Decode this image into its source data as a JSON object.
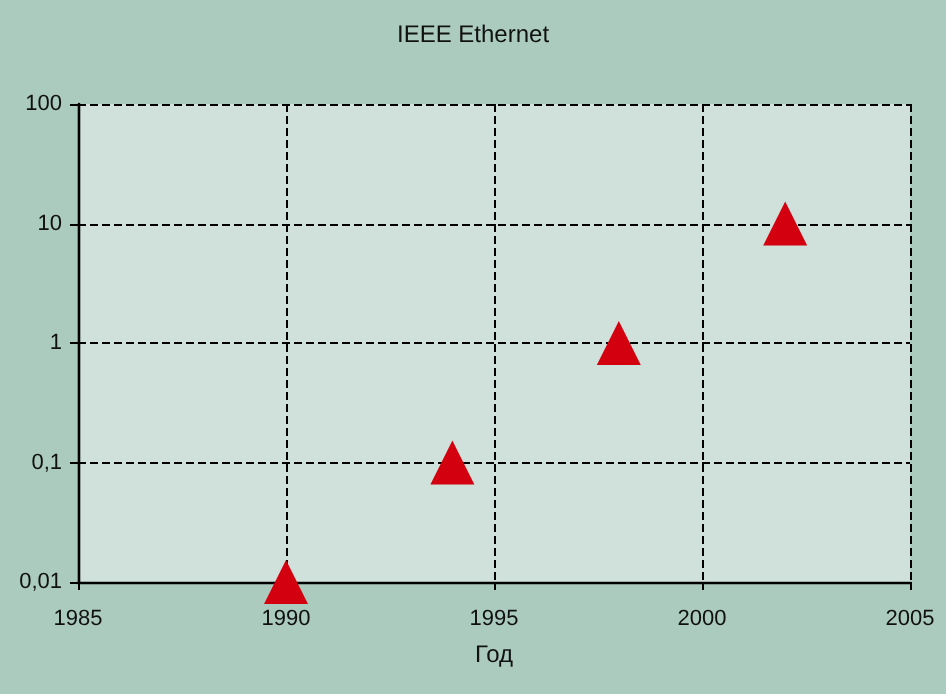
{
  "chart_data": {
    "type": "scatter",
    "title": "IEEE Ethernet",
    "xlabel": "Год",
    "x": [
      1990,
      1994,
      1998,
      2002
    ],
    "series": [
      {
        "color": "#d3000f",
        "values": [
          0.01,
          0.1,
          1,
          10
        ]
      }
    ],
    "xlim": [
      1985,
      2005
    ],
    "xticks": [
      1985,
      1990,
      1995,
      2000,
      2005
    ],
    "ylim": [
      0.01,
      100
    ],
    "yticks": [
      {
        "value": 0.01,
        "label": "0,01"
      },
      {
        "value": 0.1,
        "label": "0,1"
      },
      1,
      10,
      100
    ],
    "log": true,
    "grid": true,
    "marker": "triangle",
    "line_style": "dashed"
  }
}
